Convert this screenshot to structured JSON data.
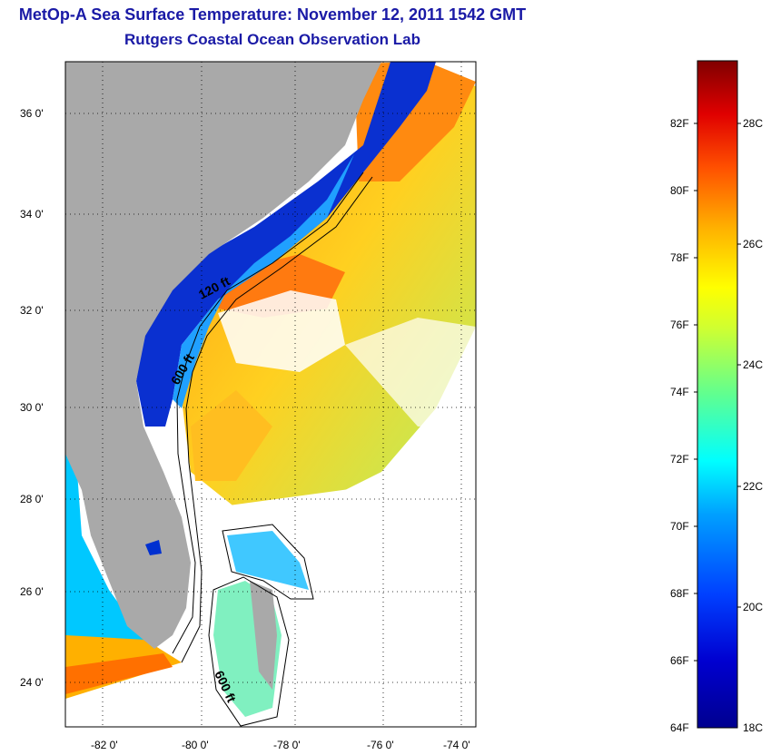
{
  "title": "MetOp-A Sea Surface Temperature:  November 12, 2011 1542 GMT",
  "subtitle": "Rutgers Coastal Ocean Observation Lab",
  "map": {
    "lat_labels": [
      "36 0'",
      "34 0'",
      "32 0'",
      "30 0'",
      "28 0'",
      "26 0'",
      "24 0'"
    ],
    "lon_labels": [
      "-82 0'",
      "-80 0'",
      "-78 0'",
      "-76 0'",
      "-74 0'"
    ],
    "contour_labels": [
      "120 ft",
      "600 ft",
      "600 ft"
    ]
  },
  "colorbar": {
    "fahrenheit_labels": [
      "82F",
      "80F",
      "78F",
      "76F",
      "74F",
      "72F",
      "70F",
      "68F",
      "66F",
      "64F"
    ],
    "celsius_labels": [
      "28C",
      "26C",
      "24C",
      "22C",
      "20C",
      "18C"
    ],
    "colors": [
      "#00008f",
      "#0000c8",
      "#0020ff",
      "#0060ff",
      "#00a0ff",
      "#00e0ff",
      "#40ffc0",
      "#80ff80",
      "#c0ff40",
      "#ffff00",
      "#ffc000",
      "#ff8000",
      "#ff4000",
      "#ff0000",
      "#c00000",
      "#800000"
    ]
  },
  "colors": {
    "title": "#1a1aa6",
    "land": "#a9a9a9",
    "cloud_mask": "#ffffff"
  }
}
